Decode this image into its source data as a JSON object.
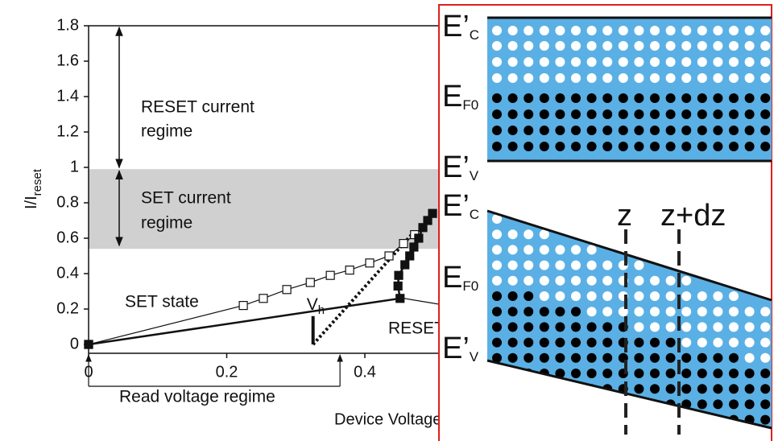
{
  "chart_data": {
    "type": "line",
    "ylabel": "I/I",
    "ylabel_sub": "reset",
    "xlabel": "Device Voltage",
    "xlim": [
      0,
      0.8
    ],
    "ylim": [
      -0.05,
      1.8
    ],
    "xticks": [
      0,
      0.2,
      0.4
    ],
    "yticks": [
      0,
      0.2,
      0.4,
      0.6,
      0.8,
      1,
      1.2,
      1.4,
      1.6,
      1.8
    ],
    "shaded_band": [
      0.54,
      0.99
    ],
    "series": [
      {
        "name": "SET state",
        "marker": "open-square",
        "color": "#111111",
        "x": [
          0,
          0.224,
          0.253,
          0.287,
          0.321,
          0.35,
          0.378,
          0.407,
          0.435,
          0.456,
          0.472
        ],
        "values": [
          0,
          0.22,
          0.26,
          0.31,
          0.35,
          0.39,
          0.42,
          0.46,
          0.5,
          0.57,
          0.62
        ]
      },
      {
        "name": "RESET state",
        "marker": "filled-square",
        "color": "#111111",
        "x": [
          0,
          0.451,
          0.448,
          0.449,
          0.458,
          0.465,
          0.471,
          0.478,
          0.484,
          0.491,
          0.498
        ],
        "values": [
          0,
          0.26,
          0.33,
          0.39,
          0.45,
          0.5,
          0.55,
          0.6,
          0.66,
          0.7,
          0.74
        ]
      }
    ],
    "switching_line": {
      "x": [
        0.325,
        0.47
      ],
      "values": [
        0,
        0.63
      ]
    },
    "threshold": {
      "symbol": "V",
      "sub": "h",
      "x": 0.325,
      "bar_top": 0.16
    },
    "regimes": [
      {
        "lines": [
          "RESET current",
          "regime"
        ]
      },
      {
        "lines": [
          "SET current",
          "regime"
        ]
      }
    ],
    "read_regime": {
      "label": "Read voltage regime",
      "range": [
        0,
        0.364
      ]
    }
  },
  "inset": {
    "upper_labels": [
      {
        "main": "E’",
        "sub": "C"
      },
      {
        "main": "E",
        "sub": "F0"
      },
      {
        "main": "E’",
        "sub": "V"
      }
    ],
    "lower_labels": [
      {
        "main": "E’",
        "sub": "C"
      },
      {
        "main": "E",
        "sub": "F0"
      },
      {
        "main": "E’",
        "sub": "V"
      }
    ],
    "positions": [
      "z",
      "z+dz"
    ]
  }
}
